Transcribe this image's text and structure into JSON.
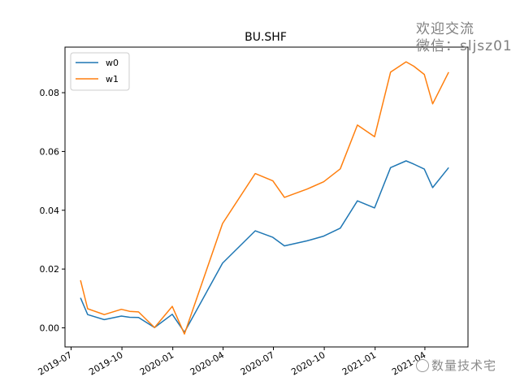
{
  "chart_data": {
    "type": "line",
    "title": "BU.SHF",
    "xlabel": "",
    "ylabel": "",
    "x_ticks": [
      "2019-07",
      "2019-10",
      "2020-01",
      "2020-04",
      "2020-07",
      "2020-10",
      "2021-01",
      "2021-04"
    ],
    "y_ticks": [
      "0.00",
      "0.02",
      "0.04",
      "0.06",
      "0.08"
    ],
    "xlim": [
      "2019-06-20",
      "2021-06-18"
    ],
    "ylim": [
      -0.0065,
      0.0955
    ],
    "grid": false,
    "legend_position": "top-left",
    "x": [
      "2019-07-18",
      "2019-07-31",
      "2019-08-30",
      "2019-09-30",
      "2019-10-15",
      "2019-10-31",
      "2019-11-29",
      "2019-12-31",
      "2020-01-22",
      "2020-03-31",
      "2020-05-29",
      "2020-06-30",
      "2020-07-21",
      "2020-08-31",
      "2020-09-30",
      "2020-10-30",
      "2020-11-30",
      "2020-12-31",
      "2021-01-29",
      "2021-02-26",
      "2021-03-12",
      "2021-03-31",
      "2021-04-15",
      "2021-05-14"
    ],
    "series": [
      {
        "name": "w0",
        "color": "#1f77b4",
        "values": [
          0.0102,
          0.0045,
          0.0028,
          0.004,
          0.0036,
          0.0035,
          0.0001,
          0.0046,
          -0.0015,
          0.022,
          0.033,
          0.0308,
          0.0279,
          0.0296,
          0.0312,
          0.0339,
          0.0432,
          0.0408,
          0.0545,
          0.0568,
          0.0557,
          0.054,
          0.0477,
          0.0545
        ]
      },
      {
        "name": "w1",
        "color": "#ff7f0e",
        "values": [
          0.0162,
          0.0065,
          0.0045,
          0.0063,
          0.0056,
          0.0054,
          0.0001,
          0.0073,
          -0.0021,
          0.0355,
          0.0525,
          0.05,
          0.0444,
          0.0472,
          0.0497,
          0.0541,
          0.069,
          0.065,
          0.087,
          0.0905,
          0.089,
          0.0862,
          0.0762,
          0.087
        ]
      }
    ]
  },
  "watermark": {
    "line1": "欢迎交流",
    "line2": "微信：sljsz01",
    "bottom": "数量技术宅"
  }
}
